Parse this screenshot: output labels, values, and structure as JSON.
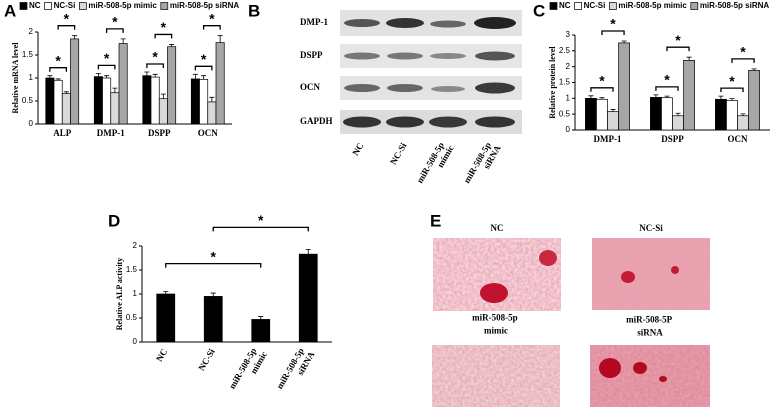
{
  "chart_data": [
    {
      "type": "bar",
      "panel": "A",
      "ylabel": "Relative mRNA level",
      "categories": [
        "ALP",
        "DMP-1",
        "DSPP",
        "OCN"
      ],
      "series": [
        {
          "name": "NC",
          "color": "#000000",
          "values": [
            1.0,
            1.03,
            1.05,
            0.98
          ],
          "errors": [
            0.05,
            0.07,
            0.08,
            0.1
          ]
        },
        {
          "name": "NC-Si",
          "color": "#ffffff",
          "values": [
            0.95,
            1.0,
            1.02,
            0.97
          ],
          "errors": [
            0.03,
            0.05,
            0.06,
            0.08
          ]
        },
        {
          "name": "miR-508-5p mimic",
          "color": "#d9d9d9",
          "values": [
            0.66,
            0.68,
            0.55,
            0.48
          ],
          "errors": [
            0.04,
            0.1,
            0.1,
            0.1
          ]
        },
        {
          "name": "miR-508-5p siRNA",
          "color": "#a6a6a6",
          "values": [
            1.85,
            1.75,
            1.68,
            1.77
          ],
          "errors": [
            0.07,
            0.1,
            0.05,
            0.15
          ]
        }
      ],
      "ylim": [
        0,
        2
      ],
      "yticks": [
        0,
        0.5,
        1,
        1.5,
        2
      ],
      "significance_label": "*"
    },
    {
      "type": "bar",
      "panel": "C",
      "ylabel": "Relative protein level",
      "categories": [
        "DMP-1",
        "DSPP",
        "OCN"
      ],
      "series": [
        {
          "name": "NC",
          "color": "#000000",
          "values": [
            1.0,
            1.03,
            0.97
          ],
          "errors": [
            0.08,
            0.08,
            0.1
          ]
        },
        {
          "name": "NC-Si",
          "color": "#ffffff",
          "values": [
            0.97,
            1.02,
            0.93
          ],
          "errors": [
            0.05,
            0.05,
            0.06
          ]
        },
        {
          "name": "miR-508-5p mimic",
          "color": "#d9d9d9",
          "values": [
            0.58,
            0.45,
            0.45
          ],
          "errors": [
            0.07,
            0.08,
            0.06
          ]
        },
        {
          "name": "miR-508-5p siRNA",
          "color": "#a6a6a6",
          "values": [
            2.75,
            2.2,
            1.88
          ],
          "errors": [
            0.06,
            0.1,
            0.05
          ]
        }
      ],
      "ylim": [
        0,
        3
      ],
      "yticks": [
        0,
        0.5,
        1,
        1.5,
        2,
        2.5,
        3
      ],
      "significance_label": "*"
    },
    {
      "type": "bar",
      "panel": "D",
      "ylabel": "Relative ALP activity",
      "categories": [
        "NC",
        "NC-Si",
        "miR-508-5p mimic",
        "miR-508-5p siRNA"
      ],
      "values": [
        1.0,
        0.95,
        0.47,
        1.83
      ],
      "errors": [
        0.05,
        0.07,
        0.06,
        0.1
      ],
      "color": "#000000",
      "ylim": [
        0,
        2
      ],
      "yticks": [
        0,
        0.5,
        1,
        1.5,
        2
      ],
      "significance_label": "*"
    }
  ],
  "blot": {
    "panel": "B",
    "proteins": [
      "DMP-1",
      "DSPP",
      "OCN",
      "GAPDH"
    ],
    "lanes": [
      "NC",
      "NC-Si",
      "miR-508-5p mimic",
      "miR-508-5p siRNA"
    ]
  },
  "micrographs": {
    "panel": "E",
    "labels": [
      "NC",
      "NC-Si",
      "miR-508-5p mimic",
      "miR-508-5P siRNA"
    ]
  }
}
